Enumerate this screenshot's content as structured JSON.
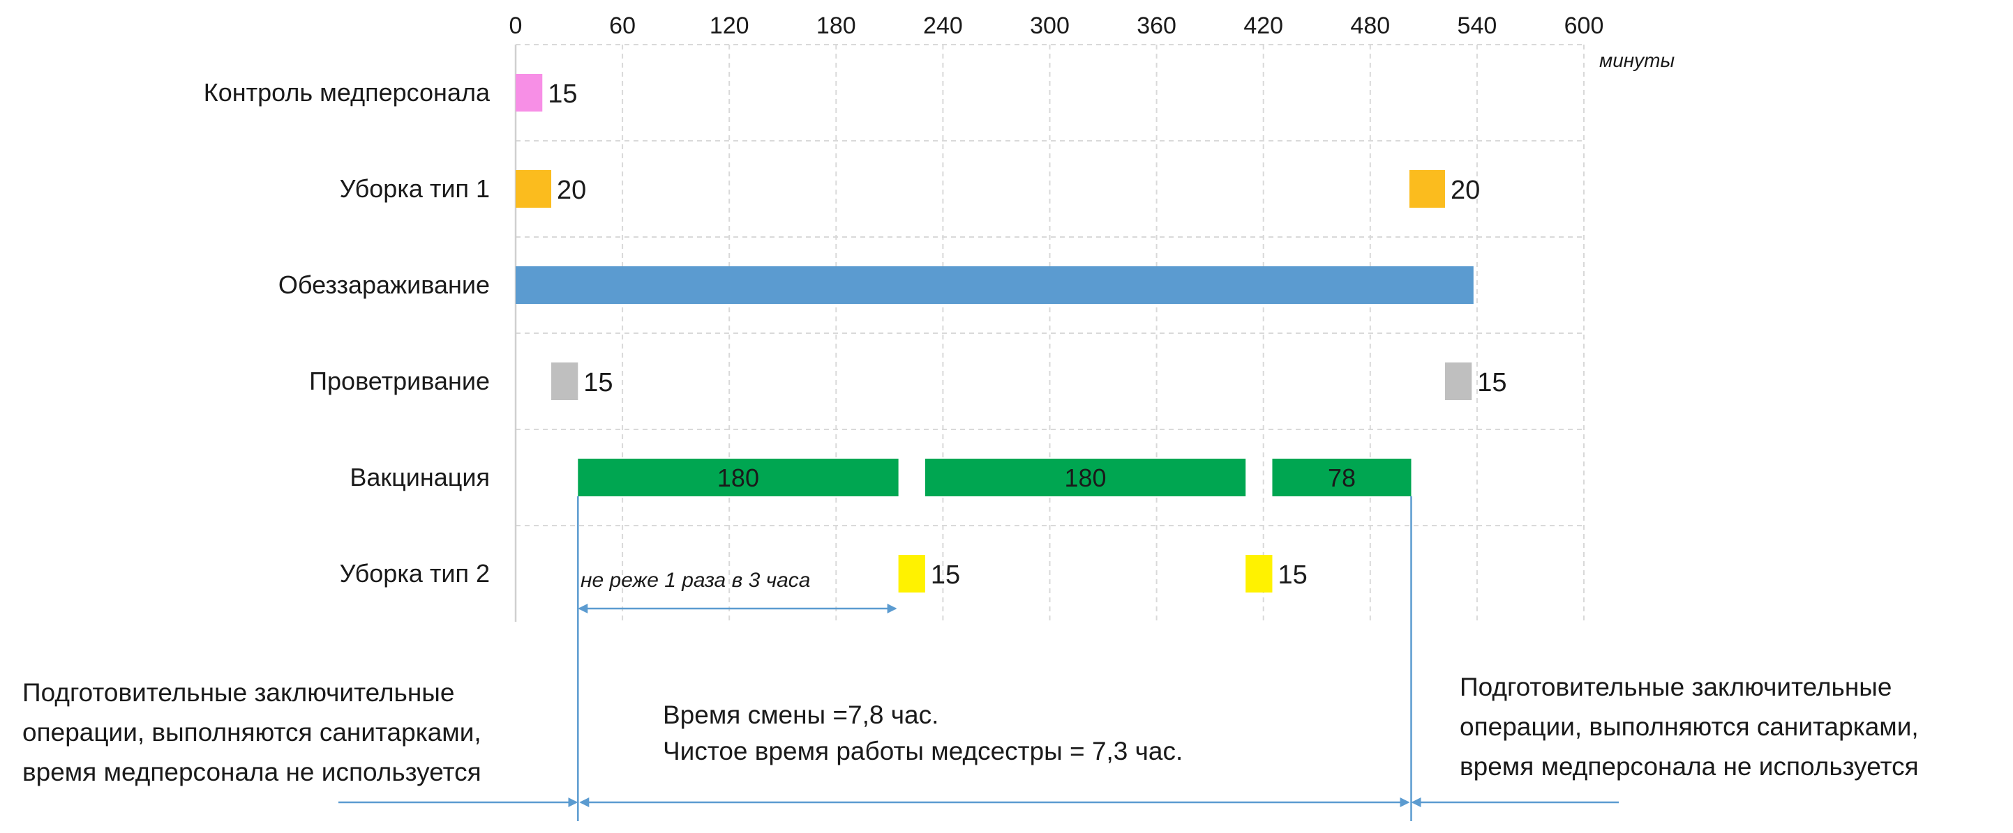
{
  "chart_data": {
    "type": "gantt",
    "x_axis": {
      "ticks": [
        0,
        60,
        120,
        180,
        240,
        300,
        360,
        420,
        480,
        540,
        600
      ],
      "unit_label": "минуты",
      "range": [
        0,
        600
      ],
      "grid": true
    },
    "categories": [
      "Контроль медперсонала",
      "Уборка тип 1",
      "Обеззараживание",
      "Проветривание",
      "Вакцинация",
      "Уборка тип 2"
    ],
    "tasks": [
      {
        "row": 0,
        "start": 0,
        "duration": 15,
        "label": "15",
        "color": "#f78fe6",
        "label_pos": "right"
      },
      {
        "row": 1,
        "start": 0,
        "duration": 20,
        "label": "20",
        "color": "#fbbc1e",
        "label_pos": "right"
      },
      {
        "row": 1,
        "start": 502,
        "duration": 20,
        "label": "20",
        "color": "#fbbc1e",
        "label_pos": "right"
      },
      {
        "row": 2,
        "start": 0,
        "duration": 538,
        "label": "",
        "color": "#5b9bd0",
        "label_pos": "none"
      },
      {
        "row": 3,
        "start": 20,
        "duration": 15,
        "label": "15",
        "color": "#bfbfbf",
        "label_pos": "right"
      },
      {
        "row": 3,
        "start": 522,
        "duration": 15,
        "label": "15",
        "color": "#bfbfbf",
        "label_pos": "right"
      },
      {
        "row": 4,
        "start": 35,
        "duration": 180,
        "label": "180",
        "color": "#00a651",
        "label_pos": "inside"
      },
      {
        "row": 4,
        "start": 230,
        "duration": 180,
        "label": "180",
        "color": "#00a651",
        "label_pos": "inside"
      },
      {
        "row": 4,
        "start": 425,
        "duration": 78,
        "label": "78",
        "color": "#00a651",
        "label_pos": "inside"
      },
      {
        "row": 5,
        "start": 215,
        "duration": 15,
        "label": "15",
        "color": "#fff200",
        "label_pos": "right"
      },
      {
        "row": 5,
        "start": 410,
        "duration": 15,
        "label": "15",
        "color": "#fff200",
        "label_pos": "right"
      }
    ],
    "annotations": {
      "interval_note": "не реже 1 раза в 3 часа",
      "shift_line_1": "Время смены =7,8 час.",
      "shift_line_2": "Чистое время работы медсестры = 7,3 час.",
      "side_note_lines": [
        "Подготовительные заключительные",
        "операции, выполняются санитарками,",
        "время медперсонала не используется"
      ]
    },
    "title": "",
    "xlabel": "",
    "ylabel": ""
  },
  "colors": {
    "grid": "#d9d9d9",
    "arrow": "#5b9bd0",
    "text": "#1a1a1a"
  }
}
